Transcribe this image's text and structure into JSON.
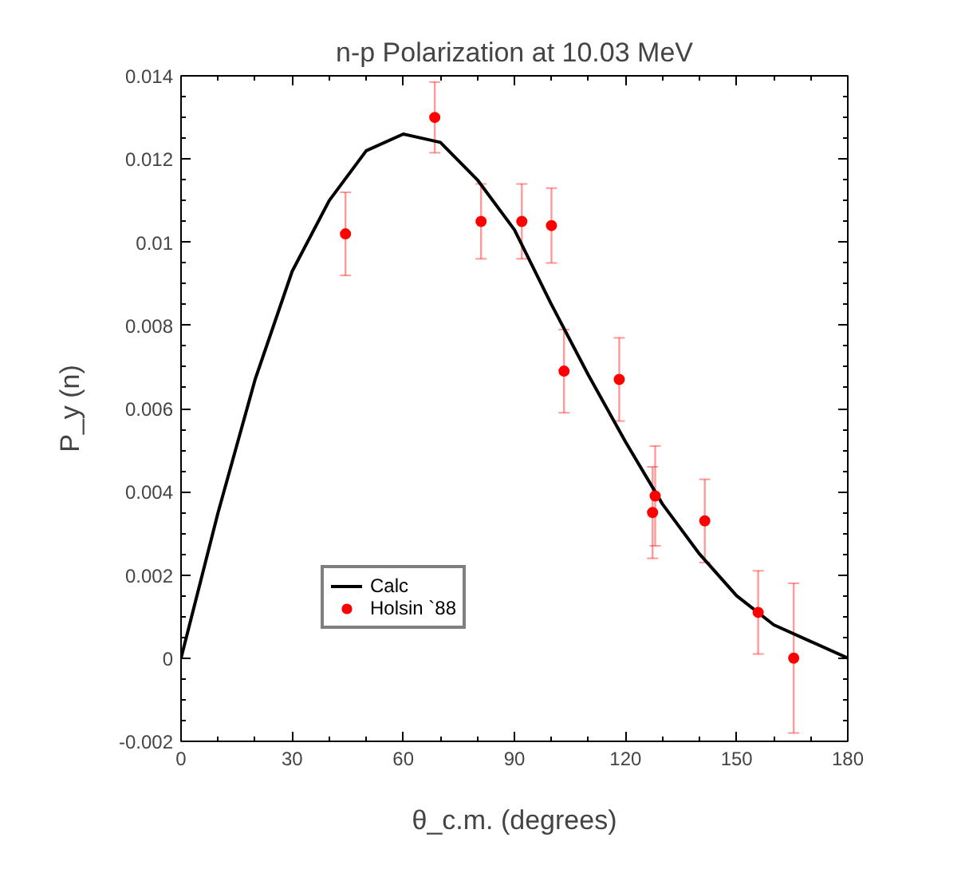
{
  "chart_data": {
    "type": "scatter",
    "title": "n-p Polarization at 10.03 MeV",
    "xlabel": "θ_c.m. (degrees)",
    "ylabel": "P_y (n)",
    "xlim": [
      0,
      180
    ],
    "xticks": [
      0,
      30,
      60,
      90,
      120,
      150,
      180
    ],
    "ylim": [
      -0.002,
      0.014
    ],
    "yticks": [
      -0.002,
      0,
      0.002,
      0.004,
      0.006,
      0.008,
      0.01,
      0.012,
      0.014
    ],
    "grid": false,
    "legend": "bottom left",
    "series": [
      {
        "name": "Calc",
        "type": "line",
        "color": "#000000",
        "line_style": "solid",
        "marker": "none",
        "x": [
          0,
          10,
          20,
          30,
          40,
          50,
          60,
          70,
          80,
          90,
          100,
          110,
          120,
          130,
          140,
          150,
          160,
          170,
          180
        ],
        "values": [
          0,
          0.0035,
          0.0067,
          0.0093,
          0.011,
          0.0122,
          0.0126,
          0.0124,
          0.0115,
          0.0103,
          0.0085,
          0.0068,
          0.0052,
          0.0037,
          0.0025,
          0.0015,
          0.0008,
          0.0004,
          0
        ]
      },
      {
        "name": "Holsin `88",
        "marker": "circle",
        "color": "#ff0000",
        "x": [
          44.4,
          68.5,
          81,
          92,
          100,
          103.4,
          118.3,
          127.3,
          128,
          141.4,
          155.8,
          165.4
        ],
        "values": [
          0.0102,
          0.013,
          0.0105,
          0.0105,
          0.0104,
          0.0069,
          0.0067,
          0.0035,
          0.0039,
          0.0033,
          0.0011,
          0
        ],
        "errors": [
          0.001,
          0.00085,
          0.0009,
          0.0009,
          0.0009,
          0.001,
          0.001,
          0.0011,
          0.0012,
          0.001,
          0.001,
          0.0018
        ]
      }
    ]
  }
}
